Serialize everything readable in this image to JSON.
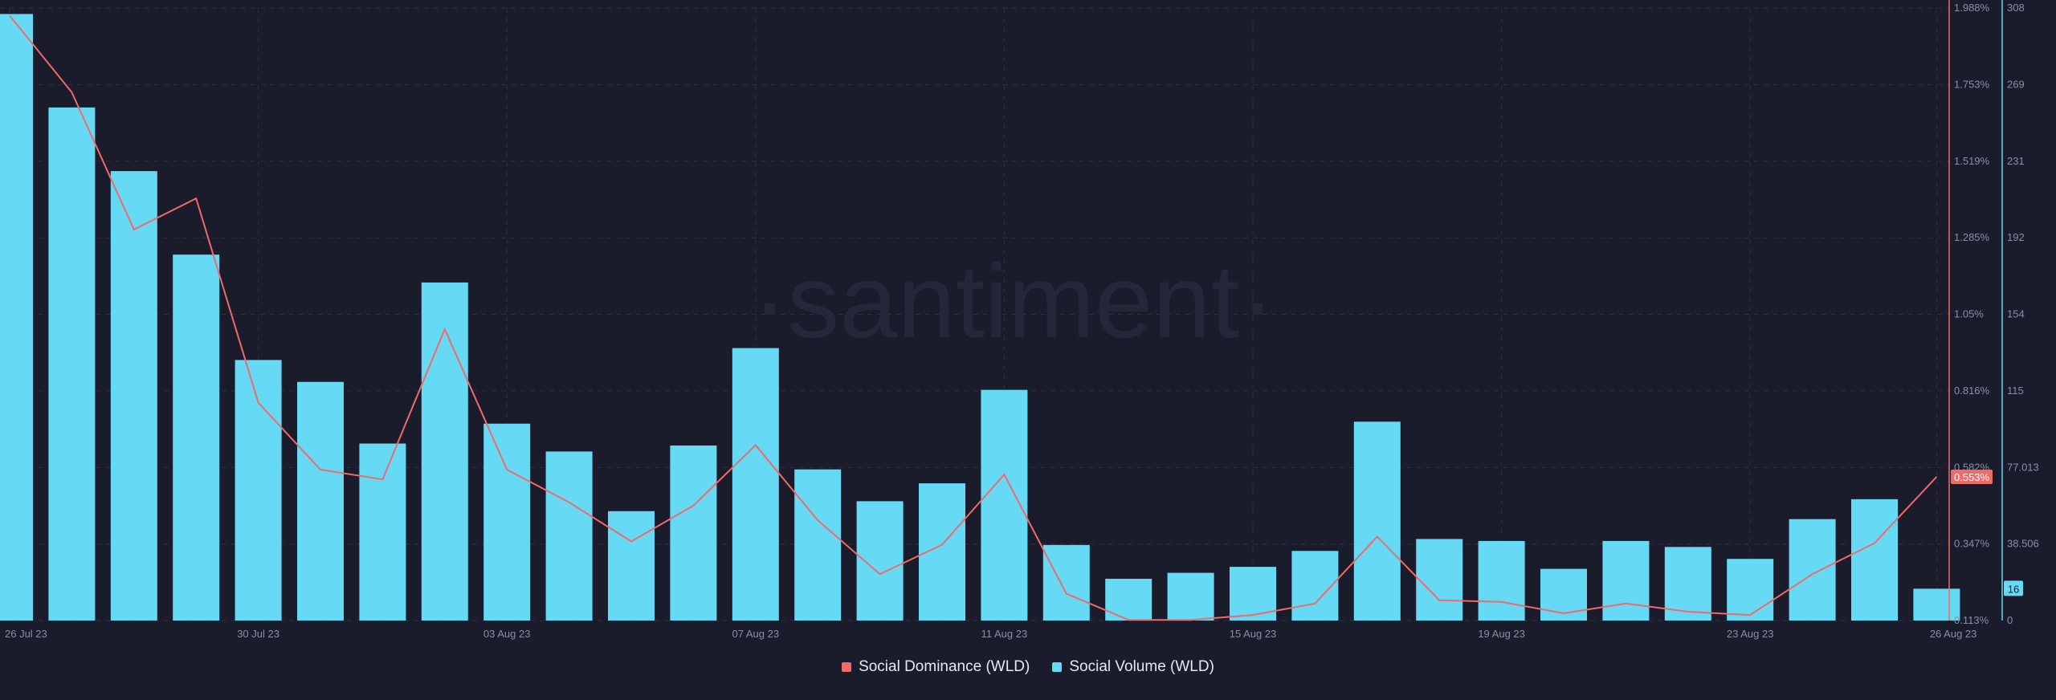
{
  "watermark": "·santiment·",
  "colors": {
    "background": "#1a1b2b",
    "grid": "#2c2f45",
    "volume": "#66d9f5",
    "dominance": "#f06a6a",
    "axis_text": "#8a8fa8",
    "label_text": "#1a1b2b"
  },
  "chart_data": {
    "type": "bar+line",
    "categories": [
      "26 Jul 23",
      "27 Jul 23",
      "28 Jul 23",
      "29 Jul 23",
      "30 Jul 23",
      "31 Jul 23",
      "01 Aug 23",
      "02 Aug 23",
      "03 Aug 23",
      "04 Aug 23",
      "05 Aug 23",
      "06 Aug 23",
      "07 Aug 23",
      "08 Aug 23",
      "09 Aug 23",
      "10 Aug 23",
      "11 Aug 23",
      "12 Aug 23",
      "13 Aug 23",
      "14 Aug 23",
      "15 Aug 23",
      "16 Aug 23",
      "17 Aug 23",
      "18 Aug 23",
      "19 Aug 23",
      "20 Aug 23",
      "21 Aug 23",
      "22 Aug 23",
      "23 Aug 23",
      "24 Aug 23",
      "25 Aug 23",
      "26 Aug 23"
    ],
    "x_tick_labels": [
      "26 Jul 23",
      "30 Jul 23",
      "03 Aug 23",
      "07 Aug 23",
      "11 Aug 23",
      "15 Aug 23",
      "19 Aug 23",
      "23 Aug 23",
      "26 Aug 23"
    ],
    "series": [
      {
        "name": "Social Volume (WLD)",
        "kind": "bar",
        "axis": "right",
        "values": [
          305,
          258,
          226,
          184,
          131,
          120,
          89,
          170,
          99,
          85,
          55,
          88,
          137,
          76,
          60,
          69,
          116,
          38,
          21,
          24,
          27,
          35,
          100,
          41,
          40,
          26,
          40,
          37,
          31,
          51,
          61,
          16
        ]
      },
      {
        "name": "Social Dominance (WLD)",
        "kind": "line",
        "axis": "right-inner",
        "values": [
          1.965,
          1.73,
          1.31,
          1.405,
          0.78,
          0.575,
          0.545,
          1.005,
          0.575,
          0.475,
          0.355,
          0.465,
          0.65,
          0.42,
          0.255,
          0.345,
          0.56,
          0.195,
          0.115,
          0.115,
          0.13,
          0.165,
          0.37,
          0.175,
          0.17,
          0.135,
          0.165,
          0.14,
          0.13,
          0.255,
          0.35,
          0.553
        ]
      }
    ],
    "dominance_axis": {
      "range": [
        0.113,
        1.988
      ],
      "tick_labels": [
        "1.988%",
        "1.753%",
        "1.519%",
        "1.285%",
        "1.05%",
        "0.816%",
        "0.582%",
        "0.347%",
        "0.113%"
      ]
    },
    "volume_axis": {
      "range": [
        0,
        308
      ],
      "tick_labels": [
        "308",
        "269",
        "231",
        "192",
        "154",
        "115",
        "77.013",
        "38.506",
        "0"
      ]
    },
    "current_labels": {
      "dominance": "0.553%",
      "volume": "16"
    },
    "legend_position": "bottom-center",
    "grid": true
  },
  "legend": {
    "dominance": "Social Dominance (WLD)",
    "volume": "Social Volume (WLD)"
  }
}
